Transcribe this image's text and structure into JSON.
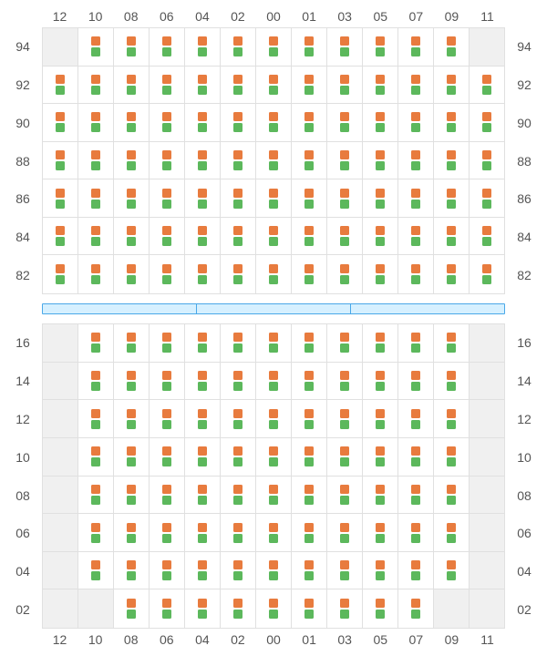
{
  "colors": {
    "square_a": "#e87b3e",
    "square_b": "#5cb85c",
    "divider_bg": "#d6f0ff",
    "divider_border": "#4aa8e8",
    "grid_border": "#e0e0e0",
    "empty_bg": "#f0f0f0",
    "label_text": "#555555"
  },
  "column_labels": [
    "12",
    "10",
    "08",
    "06",
    "04",
    "02",
    "00",
    "01",
    "03",
    "05",
    "07",
    "09",
    "11"
  ],
  "upper": {
    "row_labels": [
      "94",
      "92",
      "90",
      "88",
      "86",
      "84",
      "82"
    ],
    "rows": [
      [
        0,
        1,
        1,
        1,
        1,
        1,
        1,
        1,
        1,
        1,
        1,
        1,
        0
      ],
      [
        1,
        1,
        1,
        1,
        1,
        1,
        1,
        1,
        1,
        1,
        1,
        1,
        1
      ],
      [
        1,
        1,
        1,
        1,
        1,
        1,
        1,
        1,
        1,
        1,
        1,
        1,
        1
      ],
      [
        1,
        1,
        1,
        1,
        1,
        1,
        1,
        1,
        1,
        1,
        1,
        1,
        1
      ],
      [
        1,
        1,
        1,
        1,
        1,
        1,
        1,
        1,
        1,
        1,
        1,
        1,
        1
      ],
      [
        1,
        1,
        1,
        1,
        1,
        1,
        1,
        1,
        1,
        1,
        1,
        1,
        1
      ],
      [
        1,
        1,
        1,
        1,
        1,
        1,
        1,
        1,
        1,
        1,
        1,
        1,
        1
      ]
    ]
  },
  "lower": {
    "row_labels": [
      "16",
      "14",
      "12",
      "10",
      "08",
      "06",
      "04",
      "02"
    ],
    "rows": [
      [
        0,
        1,
        1,
        1,
        1,
        1,
        1,
        1,
        1,
        1,
        1,
        1,
        0
      ],
      [
        0,
        1,
        1,
        1,
        1,
        1,
        1,
        1,
        1,
        1,
        1,
        1,
        0
      ],
      [
        0,
        1,
        1,
        1,
        1,
        1,
        1,
        1,
        1,
        1,
        1,
        1,
        0
      ],
      [
        0,
        1,
        1,
        1,
        1,
        1,
        1,
        1,
        1,
        1,
        1,
        1,
        0
      ],
      [
        0,
        1,
        1,
        1,
        1,
        1,
        1,
        1,
        1,
        1,
        1,
        1,
        0
      ],
      [
        0,
        1,
        1,
        1,
        1,
        1,
        1,
        1,
        1,
        1,
        1,
        1,
        0
      ],
      [
        0,
        1,
        1,
        1,
        1,
        1,
        1,
        1,
        1,
        1,
        1,
        1,
        0
      ],
      [
        0,
        0,
        1,
        1,
        1,
        1,
        1,
        1,
        1,
        1,
        1,
        0,
        0
      ]
    ]
  },
  "divider_segments": 3
}
